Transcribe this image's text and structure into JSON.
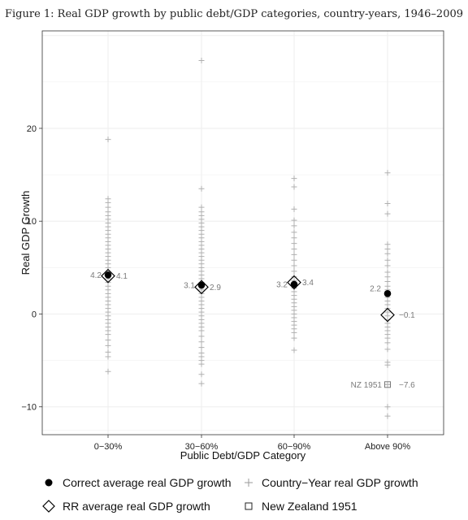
{
  "figure_title": "Figure 1: Real GDP growth by public debt/GDP categories, country-years, 1946–2009",
  "colors": {
    "points": "#b0b0b0",
    "correct": "#000000",
    "rr": "#000000",
    "nz": "#777777",
    "labels": "#7a7a7a",
    "grid": "#eeeeee",
    "panel_border": "#333333"
  },
  "chart_data": {
    "type": "scatter",
    "title": "",
    "xlabel": "Public Debt/GDP Category",
    "ylabel": "Real GDP Growth",
    "categories": [
      "0−30%",
      "30−60%",
      "60−90%",
      "Above 90%"
    ],
    "ylim": [
      -13,
      30.5
    ],
    "yticks": [
      -10,
      0,
      10,
      20
    ],
    "grid": true,
    "legend_position": "bottom",
    "series": [
      {
        "name": "Correct average real GDP growth",
        "marker": "filled-circle",
        "values": [
          4.2,
          3.1,
          3.2,
          2.2
        ],
        "labels": [
          "4.2",
          "3.1",
          "3.2",
          "2.2"
        ]
      },
      {
        "name": "RR average real GDP growth",
        "marker": "open-diamond",
        "values": [
          4.1,
          2.9,
          3.4,
          -0.1
        ],
        "labels": [
          "4.1",
          "2.9",
          "3.4",
          "−0.1"
        ]
      },
      {
        "name": "Country−Year real GDP growth",
        "marker": "plus",
        "points_by_category": [
          [
            18.8,
            12.4,
            12,
            11.5,
            11,
            10.6,
            10.2,
            9.8,
            9.4,
            9,
            8.6,
            8.2,
            7.8,
            7.4,
            7,
            6.6,
            6.2,
            5.8,
            5.4,
            5,
            4.6,
            4.2,
            3.8,
            3.4,
            3,
            2.6,
            2.2,
            1.8,
            1.4,
            1,
            0.6,
            0.2,
            -0.2,
            -0.6,
            -1,
            -1.4,
            -1.8,
            -2.2,
            -2.8,
            -3.4,
            -4.1,
            -4.6,
            -6.2
          ],
          [
            27.3,
            13.5,
            11.5,
            11,
            10.6,
            10.2,
            9.8,
            9.4,
            9,
            8.6,
            8.2,
            7.8,
            7.4,
            7,
            6.6,
            6.2,
            5.8,
            5.4,
            5,
            4.6,
            4.2,
            3.8,
            3.4,
            3,
            2.6,
            2.2,
            1.8,
            1.4,
            1,
            0.6,
            0.2,
            -0.2,
            -0.6,
            -1,
            -1.4,
            -1.8,
            -2.4,
            -3,
            -3.6,
            -4.2,
            -4.6,
            -5,
            -5.4,
            -6.5,
            -7.5
          ],
          [
            14.6,
            13.7,
            11.3,
            10.1,
            9.5,
            8.8,
            8.2,
            7.6,
            7,
            6.4,
            5.8,
            5.2,
            4.6,
            4,
            3.6,
            3.2,
            2.8,
            2.4,
            2,
            1.6,
            1.2,
            0.8,
            0.4,
            0,
            -0.4,
            -0.8,
            -1.2,
            -1.6,
            -2,
            -2.6,
            -3.9
          ],
          [
            15.2,
            11.9,
            10.8,
            7.5,
            7,
            6.5,
            5.8,
            5.2,
            4.5,
            4,
            3.5,
            3,
            2.6,
            2.2,
            1.8,
            1.4,
            1,
            0.6,
            0.2,
            -0.2,
            -0.6,
            -1,
            -1.4,
            -1.8,
            -2.2,
            -2.6,
            -3.1,
            -3.8,
            -5.2,
            -5.5,
            -7.6,
            -10,
            -11
          ]
        ]
      },
      {
        "name": "New Zealand 1951",
        "marker": "open-square",
        "category": "Above 90%",
        "value": -7.6,
        "label_left": "NZ 1951",
        "label_right": "−7.6"
      }
    ]
  }
}
